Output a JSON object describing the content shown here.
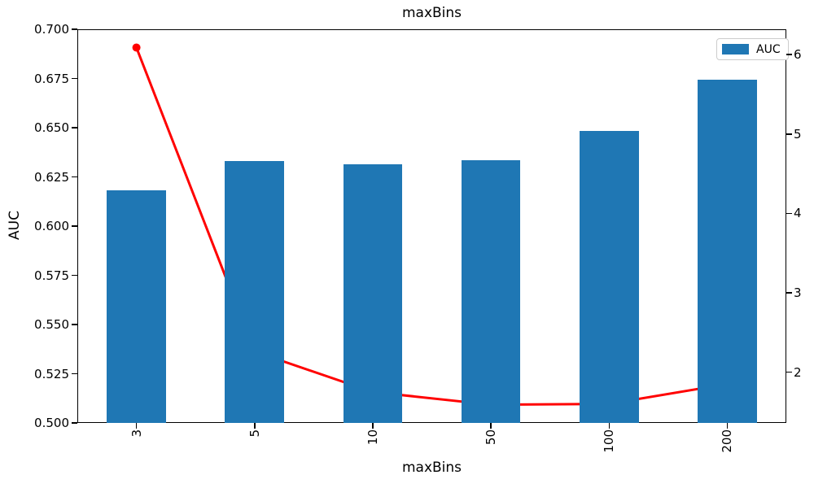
{
  "chart_data": {
    "type": "bar",
    "title": "maxBins",
    "xlabel": "maxBins",
    "ylabel_left": "AUC",
    "categories": [
      "3",
      "5",
      "10",
      "50",
      "100",
      "200"
    ],
    "series": [
      {
        "name": "AUC",
        "type": "bar",
        "axis": "left",
        "color": "#1f77b4",
        "values": [
          0.618,
          0.633,
          0.6315,
          0.6335,
          0.6485,
          0.6745
        ]
      },
      {
        "name": "",
        "type": "line",
        "axis": "right",
        "color": "#ff0000",
        "values": [
          6.09,
          2.26,
          1.75,
          1.59,
          1.6,
          1.85
        ]
      }
    ],
    "left_axis": {
      "lim": [
        0.5,
        0.7
      ],
      "tick_values": [
        0.7,
        0.675,
        0.65,
        0.625,
        0.6,
        0.575,
        0.55,
        0.525,
        0.5
      ],
      "tick_labels": [
        "0.700",
        "0.675",
        "0.650",
        "0.625",
        "0.600",
        "0.575",
        "0.550",
        "0.525",
        "0.500"
      ]
    },
    "right_axis": {
      "lim": [
        1.36,
        6.32
      ],
      "tick_values": [
        6,
        5,
        4,
        3,
        2
      ],
      "tick_labels": [
        "6",
        "5",
        "4",
        "3",
        "2"
      ]
    },
    "legend": {
      "position": "upper right",
      "entries": [
        {
          "label": "AUC",
          "color": "#1f77b4"
        }
      ]
    },
    "grid": false,
    "bar_width_fraction": 0.5,
    "x_tick_rotation": 90
  }
}
